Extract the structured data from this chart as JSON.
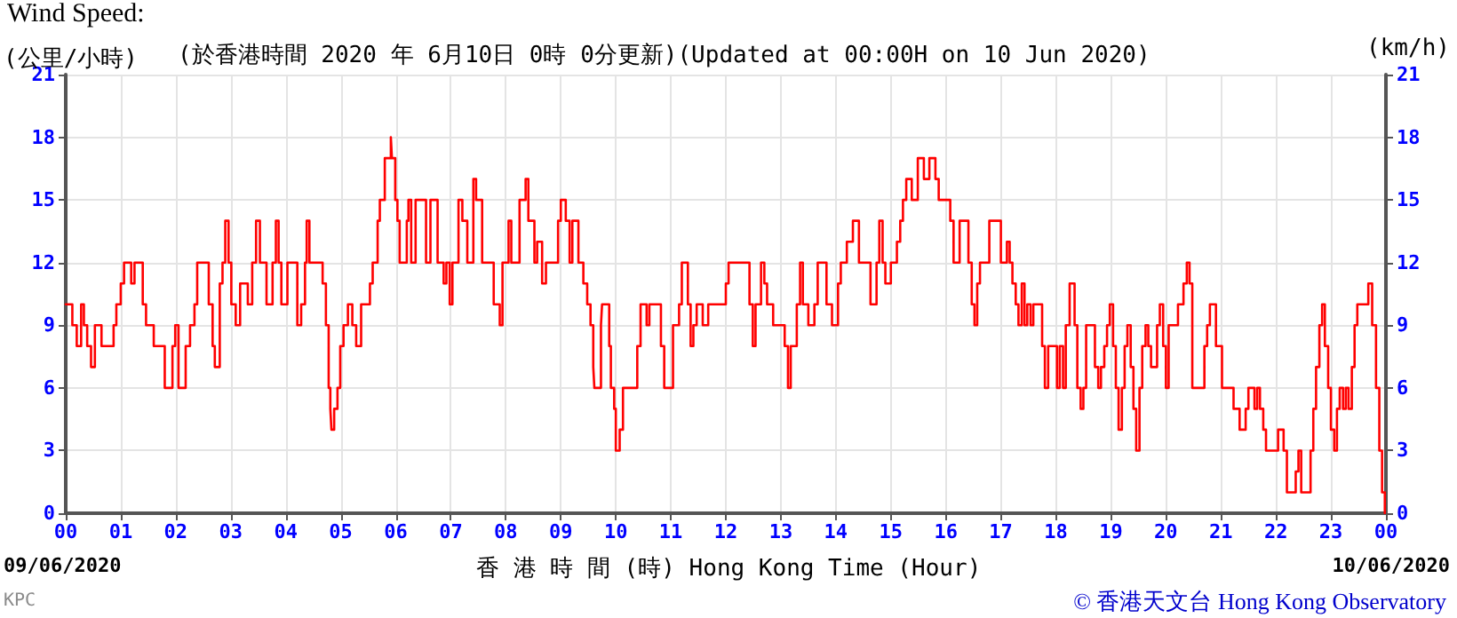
{
  "chart_data": {
    "type": "step",
    "title": "Wind Speed:",
    "subtitle": "(於香港時間 2020 年 6月10日 0時 0分更新)(Updated at 00:00H on 10 Jun 2020)",
    "ylabel": "(公里/小時)",
    "y2label": "(km/h)",
    "xlabel": "香 港 時 間 (時) Hong Kong Time (Hour)",
    "annotations": [
      "09/06/2020",
      "10/06/2020",
      "© 香港天文台 Hong Kong Observatory",
      "KPC"
    ],
    "xlim": [
      0,
      24
    ],
    "xticks": [
      {
        "value": 0,
        "label": "00"
      },
      {
        "value": 1,
        "label": "01"
      },
      {
        "value": 2,
        "label": "02"
      },
      {
        "value": 3,
        "label": "03"
      },
      {
        "value": 4,
        "label": "04"
      },
      {
        "value": 5,
        "label": "05"
      },
      {
        "value": 6,
        "label": "06"
      },
      {
        "value": 7,
        "label": "07"
      },
      {
        "value": 8,
        "label": "08"
      },
      {
        "value": 9,
        "label": "09"
      },
      {
        "value": 10,
        "label": "10"
      },
      {
        "value": 11,
        "label": "11"
      },
      {
        "value": 12,
        "label": "12"
      },
      {
        "value": 13,
        "label": "13"
      },
      {
        "value": 14,
        "label": "14"
      },
      {
        "value": 15,
        "label": "15"
      },
      {
        "value": 16,
        "label": "16"
      },
      {
        "value": 17,
        "label": "17"
      },
      {
        "value": 18,
        "label": "18"
      },
      {
        "value": 19,
        "label": "19"
      },
      {
        "value": 20,
        "label": "20"
      },
      {
        "value": 21,
        "label": "21"
      },
      {
        "value": 22,
        "label": "22"
      },
      {
        "value": 23,
        "label": "23"
      },
      {
        "value": 24,
        "label": "00"
      }
    ],
    "ylim": [
      0,
      21
    ],
    "yticks": [
      0,
      3,
      6,
      9,
      12,
      15,
      18,
      21
    ],
    "y2lim": [
      0,
      21
    ],
    "y2ticks": [
      0,
      3,
      6,
      9,
      12,
      15,
      18,
      21
    ],
    "grid": true,
    "marker": "none",
    "line_style": "solid",
    "series": [
      {
        "color": "#ff0000",
        "x": [
          0,
          0.12,
          0.2,
          0.28,
          0.33,
          0.39,
          0.46,
          0.53,
          0.65,
          0.87,
          0.92,
          1.0,
          1.06,
          1.19,
          1.25,
          1.4,
          1.46,
          1.6,
          1.8,
          1.94,
          1.99,
          2.05,
          2.18,
          2.26,
          2.34,
          2.39,
          2.6,
          2.67,
          2.71,
          2.8,
          2.85,
          2.9,
          2.96,
          3.01,
          3.09,
          3.17,
          3.31,
          3.39,
          3.46,
          3.53,
          3.65,
          3.76,
          3.82,
          3.87,
          3.92,
          4.03,
          4.21,
          4.28,
          4.35,
          4.38,
          4.43,
          4.67,
          4.73,
          4.78,
          4.81,
          4.83,
          4.88,
          4.94,
          4.99,
          5.05,
          5.13,
          5.21,
          5.28,
          5.37,
          5.53,
          5.58,
          5.67,
          5.71,
          5.8,
          5.91,
          5.93,
          5.99,
          6.03,
          6.07,
          6.2,
          6.23,
          6.28,
          6.36,
          6.55,
          6.63,
          6.76,
          6.87,
          6.92,
          6.98,
          7.03,
          7.14,
          7.21,
          7.3,
          7.41,
          7.46,
          7.57,
          7.78,
          7.89,
          7.94,
          8.05,
          8.1,
          8.25,
          8.36,
          8.41,
          8.52,
          8.57,
          8.66,
          8.73,
          8.95,
          9.0,
          9.09,
          9.16,
          9.21,
          9.32,
          9.41,
          9.48,
          9.54,
          9.59,
          9.61,
          9.73,
          9.75,
          9.88,
          9.91,
          9.97,
          10.0,
          10.07,
          10.13,
          10.39,
          10.45,
          10.56,
          10.61,
          10.82,
          10.88,
          11.04,
          11.15,
          11.2,
          11.31,
          11.36,
          11.41,
          11.47,
          11.58,
          11.68,
          12.0,
          12.05,
          12.43,
          12.49,
          12.54,
          12.64,
          12.7,
          12.75,
          12.86,
          13.07,
          13.13,
          13.18,
          13.29,
          13.35,
          13.4,
          13.5,
          13.61,
          13.67,
          13.83,
          13.93,
          14.04,
          14.09,
          14.2,
          14.31,
          14.42,
          14.63,
          14.74,
          14.79,
          14.85,
          14.9,
          15.0,
          15.11,
          15.17,
          15.22,
          15.28,
          15.38,
          15.49,
          15.6,
          15.7,
          15.81,
          15.87,
          16.08,
          16.14,
          16.25,
          16.41,
          16.47,
          16.52,
          16.57,
          16.62,
          16.79,
          17.0,
          17.11,
          17.16,
          17.21,
          17.27,
          17.32,
          17.38,
          17.43,
          17.48,
          17.54,
          17.59,
          17.75,
          17.8,
          17.86,
          18.02,
          18.07,
          18.13,
          18.18,
          18.25,
          18.34,
          18.39,
          18.45,
          18.5,
          18.55,
          18.71,
          18.77,
          18.82,
          18.88,
          18.93,
          18.98,
          19.04,
          19.09,
          19.14,
          19.2,
          19.25,
          19.3,
          19.36,
          19.41,
          19.46,
          19.52,
          19.57,
          19.63,
          19.68,
          19.73,
          19.84,
          19.89,
          19.95,
          20.0,
          20.05,
          20.22,
          20.32,
          20.38,
          20.43,
          20.48,
          20.7,
          20.75,
          20.8,
          20.91,
          21.02,
          21.23,
          21.34,
          21.45,
          21.5,
          21.61,
          21.66,
          21.71,
          21.77,
          21.82,
          22.04,
          22.14,
          22.2,
          22.36,
          22.41,
          22.46,
          22.63,
          22.68,
          22.73,
          22.79,
          22.84,
          22.89,
          22.95,
          23.0,
          23.06,
          23.11,
          23.16,
          23.22,
          23.27,
          23.32,
          23.38,
          23.43,
          23.48,
          23.68,
          23.75,
          23.82,
          23.88,
          23.93,
          23.98
        ],
        "values": [
          10,
          9,
          8,
          10,
          9,
          8,
          7,
          9,
          8,
          9,
          10,
          11,
          12,
          11,
          12,
          10,
          9,
          8,
          6,
          8,
          9,
          6,
          8,
          9,
          10,
          12,
          10,
          8,
          7,
          11,
          12,
          14,
          12,
          10,
          9,
          11,
          10,
          12,
          14,
          12,
          10,
          12,
          14,
          12,
          10,
          12,
          9,
          10,
          12,
          14,
          12,
          11,
          9,
          6,
          5,
          4,
          5,
          6,
          8,
          9,
          10,
          9,
          8,
          10,
          11,
          12,
          14,
          15,
          17,
          18,
          17,
          15,
          14,
          12,
          14,
          15,
          12,
          15,
          12,
          15,
          12,
          11,
          12,
          10,
          12,
          15,
          14,
          12,
          16,
          15,
          12,
          10,
          9,
          12,
          14,
          12,
          15,
          16,
          14,
          12,
          13,
          11,
          12,
          14,
          15,
          14,
          12,
          14,
          12,
          11,
          10,
          9,
          7,
          6,
          9,
          10,
          8,
          6,
          5,
          3,
          4,
          6,
          8,
          10,
          9,
          10,
          8,
          6,
          9,
          10,
          12,
          10,
          8,
          9,
          10,
          9,
          10,
          11,
          12,
          10,
          8,
          10,
          12,
          11,
          10,
          9,
          8,
          6,
          8,
          10,
          12,
          10,
          9,
          10,
          12,
          10,
          9,
          11,
          12,
          13,
          14,
          12,
          10,
          12,
          14,
          12,
          11,
          12,
          13,
          14,
          15,
          16,
          15,
          17,
          16,
          17,
          16,
          15,
          14,
          12,
          14,
          12,
          10,
          9,
          11,
          12,
          14,
          12,
          13,
          12,
          11,
          10,
          9,
          11,
          9,
          10,
          9,
          10,
          8,
          6,
          8,
          6,
          8,
          6,
          9,
          11,
          9,
          6,
          5,
          6,
          9,
          7,
          6,
          7,
          8,
          9,
          10,
          8,
          6,
          4,
          6,
          8,
          9,
          7,
          5,
          3,
          6,
          8,
          9,
          8,
          7,
          9,
          10,
          8,
          6,
          9,
          10,
          11,
          12,
          11,
          6,
          8,
          9,
          10,
          8,
          6,
          5,
          4,
          5,
          6,
          5,
          6,
          5,
          4,
          3,
          4,
          3,
          1,
          2,
          3,
          1,
          3,
          5,
          7,
          9,
          10,
          8,
          6,
          4,
          3,
          5,
          6,
          5,
          6,
          5,
          7,
          9,
          10,
          11,
          9,
          6,
          3,
          1,
          0
        ]
      }
    ]
  }
}
